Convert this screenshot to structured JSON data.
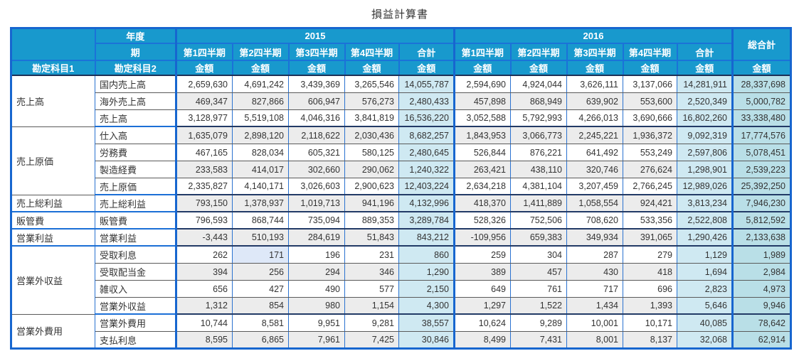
{
  "title": "損益計算書",
  "header": {
    "year_label": "年度",
    "period_label": "期",
    "account1_label": "勘定科目1",
    "account2_label": "勘定科目2",
    "amount_label": "金額",
    "total_label": "合計",
    "grand_total_label": "総合計",
    "years": [
      "2015",
      "2016"
    ],
    "quarters": [
      "第1四半期",
      "第2四半期",
      "第3四半期",
      "第4四半期"
    ]
  },
  "groups": [
    {
      "account1": "売上高",
      "rows": [
        {
          "account2": "国内売上高",
          "values": [
            "2,659,630",
            "4,691,242",
            "3,439,369",
            "3,265,546",
            "14,055,787",
            "2,594,690",
            "4,924,044",
            "3,626,111",
            "3,137,066",
            "14,281,911",
            "28,337,698"
          ]
        },
        {
          "account2": "海外売上高",
          "values": [
            "469,347",
            "827,866",
            "606,947",
            "576,273",
            "2,480,433",
            "457,898",
            "868,949",
            "639,902",
            "553,600",
            "2,520,349",
            "5,000,782"
          ]
        },
        {
          "account2": "売上高",
          "values": [
            "3,128,977",
            "5,519,108",
            "4,046,316",
            "3,841,819",
            "16,536,220",
            "3,052,588",
            "5,792,993",
            "4,266,013",
            "3,690,666",
            "16,802,260",
            "33,338,480"
          ]
        }
      ]
    },
    {
      "account1": "売上原価",
      "rows": [
        {
          "account2": "仕入高",
          "values": [
            "1,635,079",
            "2,898,120",
            "2,118,622",
            "2,030,436",
            "8,682,257",
            "1,843,953",
            "3,066,773",
            "2,245,221",
            "1,936,372",
            "9,092,319",
            "17,774,576"
          ]
        },
        {
          "account2": "労務費",
          "values": [
            "467,165",
            "828,034",
            "605,321",
            "580,125",
            "2,480,645",
            "526,844",
            "876,221",
            "641,492",
            "553,249",
            "2,597,806",
            "5,078,451"
          ]
        },
        {
          "account2": "製造経費",
          "values": [
            "233,583",
            "414,017",
            "302,660",
            "290,062",
            "1,240,322",
            "263,421",
            "438,110",
            "320,746",
            "276,624",
            "1,298,901",
            "2,539,223"
          ]
        },
        {
          "account2": "売上原価",
          "values": [
            "2,335,827",
            "4,140,171",
            "3,026,603",
            "2,900,623",
            "12,403,224",
            "2,634,218",
            "4,381,104",
            "3,207,459",
            "2,766,245",
            "12,989,026",
            "25,392,250"
          ]
        }
      ]
    },
    {
      "account1": "売上総利益",
      "rows": [
        {
          "account2": "売上総利益",
          "values": [
            "793,150",
            "1,378,937",
            "1,019,713",
            "941,196",
            "4,132,996",
            "418,370",
            "1,411,889",
            "1,058,554",
            "924,421",
            "3,813,234",
            "7,946,230"
          ]
        }
      ]
    },
    {
      "account1": "販管費",
      "rows": [
        {
          "account2": "販管費",
          "values": [
            "796,593",
            "868,744",
            "735,094",
            "889,353",
            "3,289,784",
            "528,326",
            "752,506",
            "708,620",
            "533,356",
            "2,522,808",
            "5,812,592"
          ]
        }
      ]
    },
    {
      "account1": "営業利益",
      "rows": [
        {
          "account2": "営業利益",
          "values": [
            "-3,443",
            "510,193",
            "284,619",
            "51,843",
            "843,212",
            "-109,956",
            "659,383",
            "349,934",
            "391,065",
            "1,290,426",
            "2,133,638"
          ]
        }
      ]
    },
    {
      "account1": "営業外収益",
      "rows": [
        {
          "account2": "受取利息",
          "values": [
            "262",
            "171",
            "196",
            "231",
            "860",
            "259",
            "304",
            "287",
            "279",
            "1,129",
            "1,989"
          ]
        },
        {
          "account2": "受取配当金",
          "values": [
            "394",
            "256",
            "294",
            "346",
            "1,290",
            "389",
            "457",
            "430",
            "418",
            "1,694",
            "2,984"
          ]
        },
        {
          "account2": "雑収入",
          "values": [
            "656",
            "427",
            "490",
            "577",
            "2,150",
            "649",
            "761",
            "717",
            "696",
            "2,823",
            "4,973"
          ]
        },
        {
          "account2": "営業外収益",
          "values": [
            "1,312",
            "854",
            "980",
            "1,154",
            "4,300",
            "1,297",
            "1,522",
            "1,434",
            "1,393",
            "5,646",
            "9,946"
          ]
        }
      ]
    },
    {
      "account1": "営業外費用",
      "rows": [
        {
          "account2": "営業外費用",
          "values": [
            "10,744",
            "8,581",
            "9,951",
            "9,281",
            "38,557",
            "10,624",
            "9,289",
            "10,001",
            "10,171",
            "40,085",
            "78,642"
          ]
        },
        {
          "account2": "支払利息",
          "values": [
            "8,595",
            "6,865",
            "7,961",
            "7,425",
            "30,846",
            "8,499",
            "7,431",
            "8,001",
            "8,137",
            "32,068",
            "62,914"
          ]
        }
      ]
    }
  ],
  "highlight": {
    "account2": "受取利息",
    "value_index": 1
  },
  "colors": {
    "header_bg": "#1899cd",
    "border_blue": "#1b72d8",
    "outer_border": "#1766cf",
    "sum_column_bg": "#cfe9f2",
    "grand_total_bg": "#b9dfe7",
    "zebra_row_bg": "#ececec",
    "highlight_cell_bg": "#dee8f8",
    "header_text": "#ffffff",
    "body_text": "#333333"
  }
}
